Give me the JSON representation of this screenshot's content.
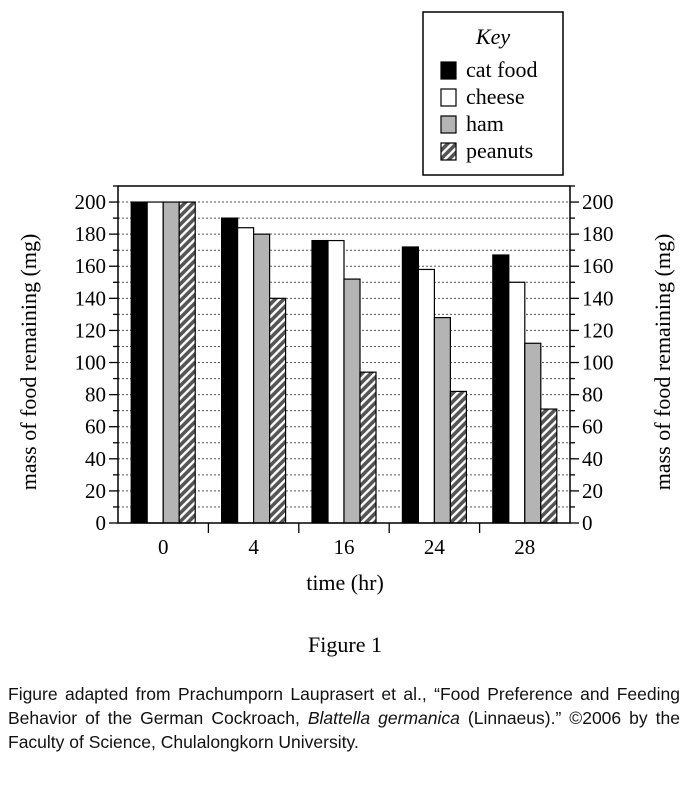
{
  "chart_data": {
    "type": "bar",
    "categories": [
      "0",
      "4",
      "16",
      "24",
      "28"
    ],
    "series": [
      {
        "name": "cat food",
        "values": [
          200,
          190,
          176,
          172,
          167
        ],
        "fill": "#000000"
      },
      {
        "name": "cheese",
        "values": [
          200,
          184,
          176,
          158,
          150
        ],
        "fill": "#ffffff"
      },
      {
        "name": "ham",
        "values": [
          200,
          180,
          152,
          128,
          112
        ],
        "fill": "#b4b4b4"
      },
      {
        "name": "peanuts",
        "values": [
          200,
          140,
          94,
          82,
          71
        ],
        "fill": "hatch"
      }
    ],
    "xlabel": "time (hr)",
    "ylabel": "mass of food remaining (mg)",
    "ylabel_right": "mass of food remaining (mg)",
    "ylim": [
      0,
      210
    ],
    "yticks": [
      0,
      20,
      40,
      60,
      80,
      100,
      120,
      140,
      160,
      180,
      200
    ],
    "grid": true,
    "legend": {
      "title": "Key",
      "placement": "top-right"
    },
    "figure_label": "Figure 1"
  },
  "caption": {
    "part1": "Figure adapted from Prachumporn Lauprasert et al., “Food Preference and Feeding Behavior of the German Cockroach, ",
    "italic1": "Blattella germanica",
    "part2": " (Linnaeus).” ©2006 by the Faculty of Science, Chulalongkorn University."
  }
}
